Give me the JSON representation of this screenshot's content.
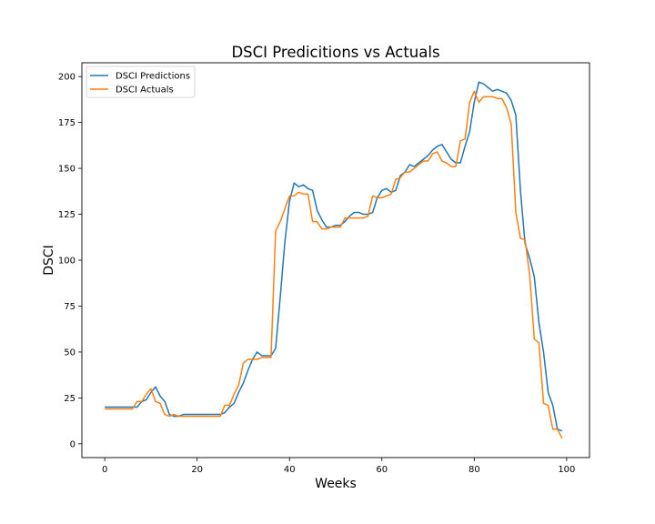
{
  "chart_data": {
    "type": "line",
    "title": "DSCI Predicitions vs Actuals",
    "xlabel": "Weeks",
    "ylabel": "DSCI",
    "xlim": [
      -4.95,
      104.95
    ],
    "ylim": [
      -7.5,
      207.5
    ],
    "xticks": [
      0,
      20,
      40,
      60,
      80,
      100
    ],
    "yticks": [
      0,
      25,
      50,
      75,
      100,
      125,
      150,
      175,
      200
    ],
    "grid": false,
    "legend_position": "top-left",
    "x": [
      0,
      1,
      2,
      3,
      4,
      5,
      6,
      7,
      8,
      9,
      10,
      11,
      12,
      13,
      14,
      15,
      16,
      17,
      18,
      19,
      20,
      21,
      22,
      23,
      24,
      25,
      26,
      27,
      28,
      29,
      30,
      31,
      32,
      33,
      34,
      35,
      36,
      37,
      38,
      39,
      40,
      41,
      42,
      43,
      44,
      45,
      46,
      47,
      48,
      49,
      50,
      51,
      52,
      53,
      54,
      55,
      56,
      57,
      58,
      59,
      60,
      61,
      62,
      63,
      64,
      65,
      66,
      67,
      68,
      69,
      70,
      71,
      72,
      73,
      74,
      75,
      76,
      77,
      78,
      79,
      80,
      81,
      82,
      83,
      84,
      85,
      86,
      87,
      88,
      89,
      90,
      91,
      92,
      93,
      94,
      95,
      96,
      97,
      98,
      99
    ],
    "series": [
      {
        "name": "DSCI Predictions",
        "color": "#1f77b4",
        "values": [
          20,
          20,
          20,
          20,
          20,
          20,
          20,
          20,
          23,
          24,
          28,
          31,
          26,
          23,
          16,
          15,
          15,
          16,
          16,
          16,
          16,
          16,
          16,
          16,
          16,
          16,
          17,
          20,
          22,
          28,
          33,
          40,
          46,
          50,
          48,
          48,
          48,
          52,
          80,
          110,
          132,
          142,
          140,
          141,
          139,
          138,
          127,
          122,
          118,
          118,
          119,
          119,
          121,
          124,
          126,
          126,
          125,
          125,
          126,
          134,
          138,
          139,
          137,
          138,
          146,
          148,
          152,
          151,
          153,
          155,
          157,
          160,
          162,
          163,
          159,
          155,
          153,
          153,
          162,
          170,
          186,
          197,
          196,
          194,
          192,
          193,
          192,
          191,
          187,
          179,
          138,
          109,
          101,
          91,
          66,
          50,
          28,
          21,
          8,
          7
        ]
      },
      {
        "name": "DSCI Actuals",
        "color": "#ff7f0e",
        "values": [
          19,
          19,
          19,
          19,
          19,
          19,
          19,
          23,
          23,
          27,
          30,
          23,
          22,
          16,
          15,
          16,
          15,
          15,
          15,
          15,
          15,
          15,
          15,
          15,
          15,
          15,
          21,
          21,
          27,
          32,
          44,
          46,
          46,
          46,
          47,
          47,
          47,
          116,
          121,
          128,
          135,
          135,
          137,
          136,
          136,
          121,
          121,
          117,
          117,
          118,
          118,
          118,
          123,
          123,
          123,
          123,
          123,
          124,
          135,
          134,
          134,
          135,
          136,
          144,
          145,
          148,
          148,
          150,
          152,
          154,
          154,
          158,
          159,
          154,
          153,
          151,
          151,
          165,
          166,
          186,
          192,
          186,
          189,
          189,
          189,
          188,
          188,
          183,
          174,
          126,
          112,
          111,
          92,
          57,
          55,
          22,
          21,
          8,
          8,
          3
        ]
      }
    ]
  }
}
